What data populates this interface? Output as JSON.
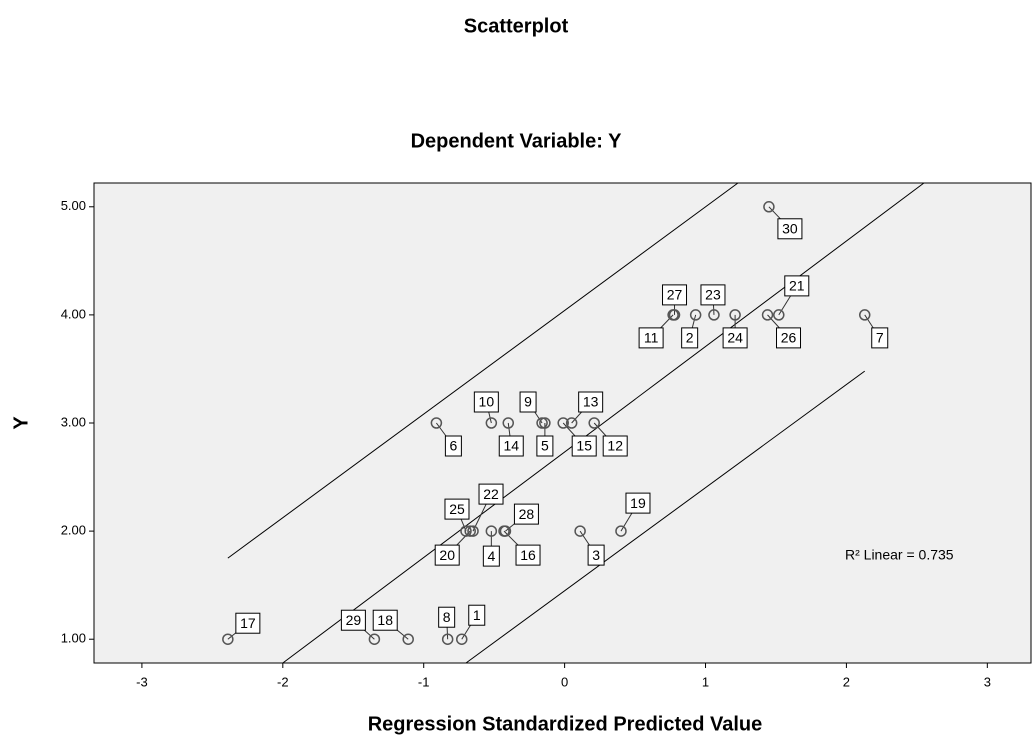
{
  "chart_data": {
    "type": "scatter",
    "title": "Scatterplot",
    "subtitle": "Dependent Variable: Y",
    "x_label": "Regression Standardized Predicted Value",
    "y_label": "Y",
    "xlim": [
      -3.34,
      3.31
    ],
    "ylim": [
      0.78,
      5.22
    ],
    "xticks": [
      -3,
      -2,
      -1,
      0,
      1,
      2,
      3
    ],
    "yticks": [
      {
        "value": 1,
        "label": "1.00"
      },
      {
        "value": 2,
        "label": "2.00"
      },
      {
        "value": 3,
        "label": "3.00"
      },
      {
        "value": 4,
        "label": "4.00"
      },
      {
        "value": 5,
        "label": "5.00"
      }
    ],
    "grid": false,
    "background": "#f0f0f0",
    "color": "#555555",
    "point_labels": [
      "1",
      "2",
      "3",
      "4",
      "5",
      "6",
      "7",
      "8",
      "9",
      "10",
      "11",
      "12",
      "13",
      "14",
      "15",
      "16",
      "17",
      "18",
      "19",
      "20",
      "21",
      "22",
      "23",
      "24",
      "25",
      "26",
      "27",
      "28",
      "29",
      "30"
    ],
    "x": [
      -0.73,
      0.93,
      0.11,
      -0.52,
      -0.14,
      -0.91,
      2.13,
      -0.83,
      -0.16,
      -0.52,
      0.77,
      0.21,
      0.05,
      -0.4,
      -0.01,
      -0.43,
      -2.39,
      -1.11,
      0.4,
      -0.67,
      1.52,
      -0.65,
      1.06,
      1.21,
      -0.7,
      1.44,
      0.78,
      -0.42,
      -1.35,
      1.45
    ],
    "values": [
      1,
      4,
      2,
      2,
      3,
      3,
      4,
      1,
      3,
      3,
      4,
      3,
      3,
      3,
      3,
      2,
      1,
      1,
      2,
      2,
      4,
      2,
      4,
      4,
      2,
      4,
      4,
      2,
      1,
      5
    ],
    "lines": [
      {
        "x": [
          -2.39,
          1.23
        ],
        "y": [
          1.75,
          5.22
        ]
      },
      {
        "x": [
          -2.0,
          2.55
        ],
        "y": [
          0.78,
          5.22
        ]
      },
      {
        "x": [
          -0.7,
          2.13
        ],
        "y": [
          0.78,
          3.48
        ]
      }
    ],
    "annotation": "R² Linear = 0.735"
  }
}
